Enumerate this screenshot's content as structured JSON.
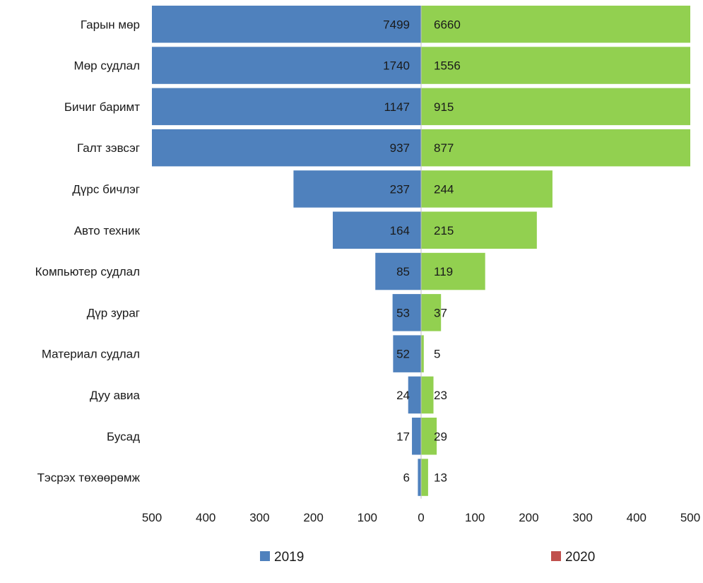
{
  "chart_data": {
    "type": "bar",
    "orientation": "horizontal-diverging",
    "categories": [
      "Гарын мөр",
      "Мөр судлал",
      "Бичиг баримт",
      "Галт зэвсэг",
      "Дүрс бичлэг",
      "Авто техник",
      "Компьютер судлал",
      "Дүр зураг",
      "Материал судлал",
      "Дуу авиа",
      "Бусад",
      "Тэсрэх төхөөрөмж"
    ],
    "series": [
      {
        "name": "2019",
        "color": "#4f81bd",
        "direction": "left",
        "values": [
          7499,
          1740,
          1147,
          937,
          237,
          164,
          85,
          53,
          52,
          24,
          17,
          6
        ]
      },
      {
        "name": "2020",
        "color": "#92d050",
        "legend_color": "#c0504d",
        "direction": "right",
        "values": [
          6660,
          1556,
          915,
          877,
          244,
          215,
          119,
          37,
          5,
          23,
          29,
          13
        ]
      }
    ],
    "xlim": [
      0,
      500
    ],
    "x_axis_clipped": true,
    "tick_labels_left": [
      "500",
      "400",
      "300",
      "200",
      "100",
      "0"
    ],
    "tick_labels_right": [
      "100",
      "200",
      "300",
      "400",
      "500"
    ],
    "grid": false,
    "legend_position": "bottom"
  }
}
